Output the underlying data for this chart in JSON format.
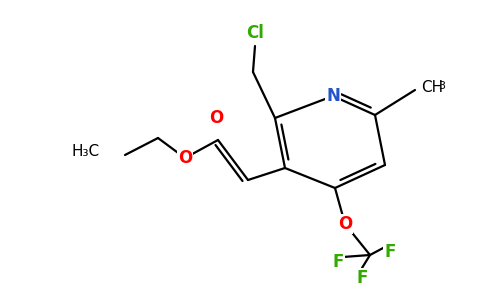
{
  "background_color": "#ffffff",
  "atom_colors": {
    "C": "#000000",
    "N": "#2255cc",
    "O": "#ff0000",
    "F": "#33aa00",
    "Cl": "#33aa00"
  },
  "figsize": [
    4.84,
    3.0
  ],
  "dpi": 100,
  "line_width": 1.6,
  "font_size": 11
}
